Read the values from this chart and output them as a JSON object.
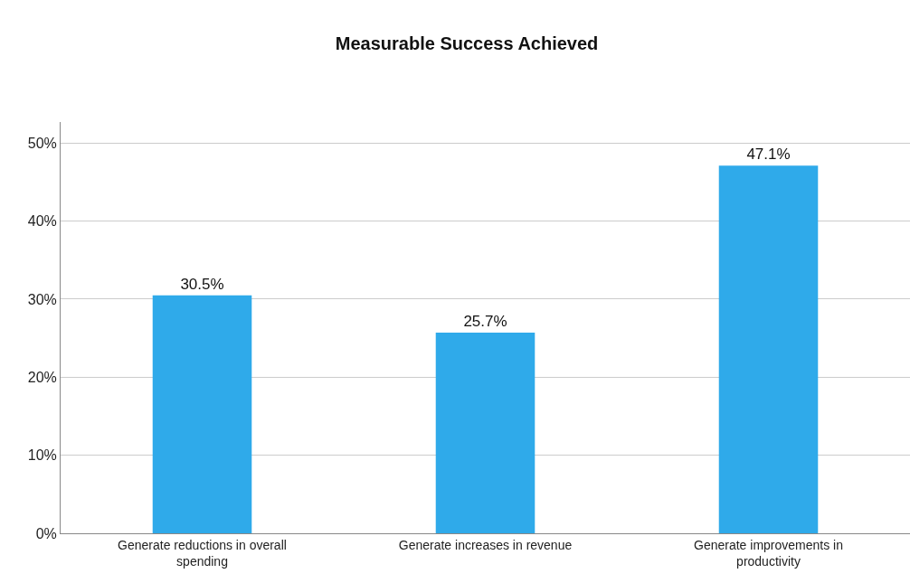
{
  "chart_data": {
    "type": "bar",
    "title": "Measurable Success Achieved",
    "categories": [
      "Generate reductions in overall spending",
      "Generate increases in revenue",
      "Generate improvements in productivity"
    ],
    "values": [
      30.5,
      25.7,
      47.1
    ],
    "color": "#2faaea",
    "value_labels": [
      "30.5%",
      "25.7%",
      "47.1%"
    ],
    "ylim": [
      0,
      52.7
    ],
    "yticks": [
      {
        "value": 0,
        "label": "0%"
      },
      {
        "value": 10,
        "label": "10%"
      },
      {
        "value": 20,
        "label": "20%"
      },
      {
        "value": 30,
        "label": "30%"
      },
      {
        "value": 40,
        "label": "40%"
      },
      {
        "value": 50,
        "label": "50%"
      }
    ],
    "grid": "y"
  }
}
